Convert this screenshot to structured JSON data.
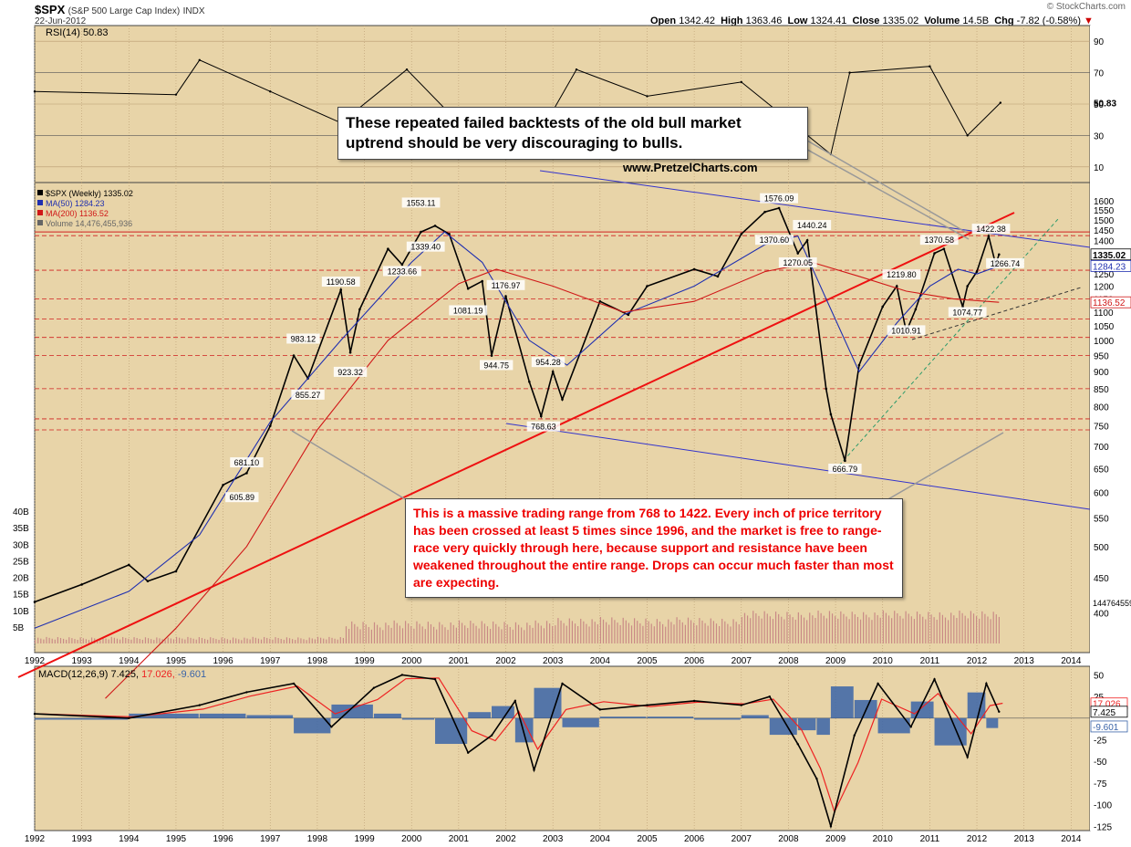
{
  "header": {
    "symbol": "$SPX",
    "name": "(S&P 500 Large Cap Index)",
    "exchange": "INDX",
    "date": "22-Jun-2012",
    "watermark": "© StockCharts.com",
    "open_label": "Open",
    "open": "1342.42",
    "high_label": "High",
    "high": "1363.46",
    "low_label": "Low",
    "low": "1324.41",
    "close_label": "Close",
    "close": "1335.02",
    "volume_label": "Volume",
    "volume": "14.5B",
    "chg_label": "Chg",
    "chg": "-7.82 (-0.58%)"
  },
  "colors": {
    "background": "#E8D4A8",
    "price": "#000000",
    "ma50": "#1f2fb0",
    "ma200": "#d01818",
    "trendline": "#ee1111",
    "channel": "#3333cc",
    "volume": "#c98a86",
    "macd": "#000000",
    "signal": "#ee2222",
    "histogram": "#3a64a8",
    "rsi_fill": "#4a7a40"
  },
  "annotations": {
    "top_text": "These repeated failed backtests of the old bull market uptrend should be very discouraging to bulls.",
    "site": "www.PretzelCharts.com",
    "bottom_text": "This is a massive trading range from 768 to 1422.  Every inch of price territory has been crossed at least 5 times since 1996, and the market is free to range-race very quickly through here, because support and resistance have been weakened throughout the entire range.  Drops can occur much faster than most are expecting."
  },
  "chart_data": [
    {
      "type": "line",
      "panel": "rsi",
      "title": "RSI(14) 50.83",
      "ylim": [
        0,
        100
      ],
      "yticks": [
        90,
        70,
        50,
        30,
        10
      ],
      "current_label": "50.83",
      "x": [
        1992,
        1995,
        1995.5,
        1997,
        1998.5,
        1999.9,
        2001,
        2002.7,
        2003.5,
        2005,
        2007,
        2008.9,
        2009.3,
        2011,
        2011.8,
        2012.5
      ],
      "y": [
        58,
        56,
        78,
        58,
        38,
        72,
        38,
        30,
        72,
        55,
        64,
        18,
        70,
        74,
        30,
        50.83
      ]
    },
    {
      "type": "line",
      "panel": "price",
      "title": "$SPX (Weekly) 1335.02",
      "legend": [
        "$SPX (Weekly) 1335.02",
        "MA(50) 1284.23",
        "MA(200) 1136.52",
        "Volume 14,476,455,936"
      ],
      "scale": "log",
      "ylim": [
        350,
        1700
      ],
      "yticks": [
        1600,
        1550,
        1500,
        1450,
        1400,
        1300,
        1250,
        1200,
        1150,
        1100,
        1050,
        1000,
        950,
        900,
        850,
        800,
        750,
        700,
        650,
        600,
        550,
        500,
        450,
        400
      ],
      "current_labels": {
        "close": "1335.02",
        "ma50": "1284.23",
        "ma200": "1136.52",
        "volume": "14476455936"
      },
      "series": [
        {
          "name": "$SPX (Weekly)",
          "x": [
            1992.0,
            1993.0,
            1994.0,
            1994.4,
            1995.0,
            1996.0,
            1996.5,
            1997.0,
            1997.5,
            1997.8,
            1998.5,
            1998.7,
            1998.9,
            1999.5,
            1999.8,
            2000.2,
            2000.5,
            2000.8,
            2001.2,
            2001.5,
            2001.7,
            2002.0,
            2002.5,
            2002.75,
            2003.0,
            2003.2,
            2004.0,
            2004.6,
            2005.0,
            2006.0,
            2006.5,
            2007.0,
            2007.5,
            2007.8,
            2008.2,
            2008.4,
            2008.8,
            2008.9,
            2009.2,
            2009.5,
            2010.0,
            2010.3,
            2010.5,
            2010.7,
            2011.1,
            2011.3,
            2011.7,
            2011.8,
            2012.0,
            2012.25,
            2012.4,
            2012.47
          ],
          "y": [
            415,
            440,
            470,
            445,
            460,
            615,
            640,
            750,
            950,
            880,
            1185,
            960,
            1110,
            1360,
            1290,
            1440,
            1470,
            1430,
            1190,
            1220,
            950,
            1160,
            870,
            775,
            900,
            820,
            1140,
            1090,
            1200,
            1270,
            1240,
            1430,
            1540,
            1560,
            1340,
            1400,
            850,
            780,
            667,
            920,
            1120,
            1200,
            1030,
            1110,
            1340,
            1360,
            1120,
            1200,
            1260,
            1420,
            1290,
            1335
          ]
        },
        {
          "name": "MA(50)",
          "x": [
            1992.0,
            1994.0,
            1995.5,
            1997.0,
            1998.5,
            2000.0,
            2000.7,
            2001.5,
            2002.5,
            2003.3,
            2004.5,
            2006.0,
            2007.5,
            2008.2,
            2008.8,
            2009.5,
            2010.3,
            2011.0,
            2011.6,
            2012.0,
            2012.47
          ],
          "y": [
            380,
            430,
            520,
            760,
            1000,
            1300,
            1440,
            1300,
            1000,
            920,
            1090,
            1200,
            1380,
            1420,
            1150,
            900,
            1060,
            1200,
            1270,
            1250,
            1284.23
          ]
        },
        {
          "name": "MA(200)",
          "x": [
            1993.5,
            1995.0,
            1996.5,
            1998.0,
            1999.5,
            2001.0,
            2001.8,
            2003.0,
            2004.5,
            2006.0,
            2007.5,
            2008.5,
            2009.5,
            2010.5,
            2011.5,
            2012.47
          ],
          "y": [
            300,
            380,
            500,
            740,
            1000,
            1210,
            1270,
            1200,
            1100,
            1140,
            1260,
            1300,
            1240,
            1180,
            1150,
            1136.52
          ]
        }
      ],
      "labels": [
        "605.89",
        "681.10",
        "855.27",
        "983.12",
        "923.32",
        "1190.58",
        "1233.66",
        "1339.40",
        "1553.11",
        "1081.19",
        "1176.97",
        "944.75",
        "954.28",
        "768.63",
        "1370.60",
        "1576.09",
        "1440.24",
        "1270.05",
        "666.79",
        "1010.91",
        "1219.80",
        "1370.58",
        "1074.77",
        "1422.38",
        "1266.74"
      ]
    },
    {
      "type": "bar",
      "panel": "volume",
      "yticks": [
        "40B",
        "35B",
        "30B",
        "25B",
        "20B",
        "15B",
        "10B",
        "5B"
      ]
    },
    {
      "type": "line",
      "panel": "macd",
      "title": "MACD(12,26,9) 7.425, 17.026, -9.601",
      "title_parts": {
        "name": "MACD(12,26,9)",
        "macd": "7.425",
        "signal": "17.026",
        "hist": "-9.601"
      },
      "ylim": [
        -130,
        60
      ],
      "yticks": [
        50,
        25,
        -25,
        -50,
        -75,
        -100,
        -125
      ],
      "x": [
        1992,
        1994,
        1995.5,
        1996.5,
        1997.5,
        1998.3,
        1999.2,
        1999.8,
        2000.5,
        2001.2,
        2001.7,
        2002.2,
        2002.6,
        2003.2,
        2004.0,
        2005.0,
        2006.0,
        2007.0,
        2007.6,
        2008.2,
        2008.6,
        2008.9,
        2009.4,
        2009.9,
        2010.6,
        2011.1,
        2011.8,
        2012.2,
        2012.47
      ],
      "y": [
        5,
        0,
        15,
        30,
        40,
        -10,
        35,
        50,
        45,
        -40,
        -20,
        20,
        -60,
        40,
        10,
        15,
        20,
        15,
        25,
        -30,
        -70,
        -125,
        -20,
        40,
        -10,
        45,
        -45,
        40,
        7.425
      ]
    }
  ],
  "axis": {
    "years": [
      "1992",
      "1993",
      "1994",
      "1995",
      "1996",
      "1997",
      "1998",
      "1999",
      "2000",
      "2001",
      "2002",
      "2003",
      "2004",
      "2005",
      "2006",
      "2007",
      "2008",
      "2009",
      "2010",
      "2011",
      "2012",
      "2013",
      "2014"
    ]
  }
}
